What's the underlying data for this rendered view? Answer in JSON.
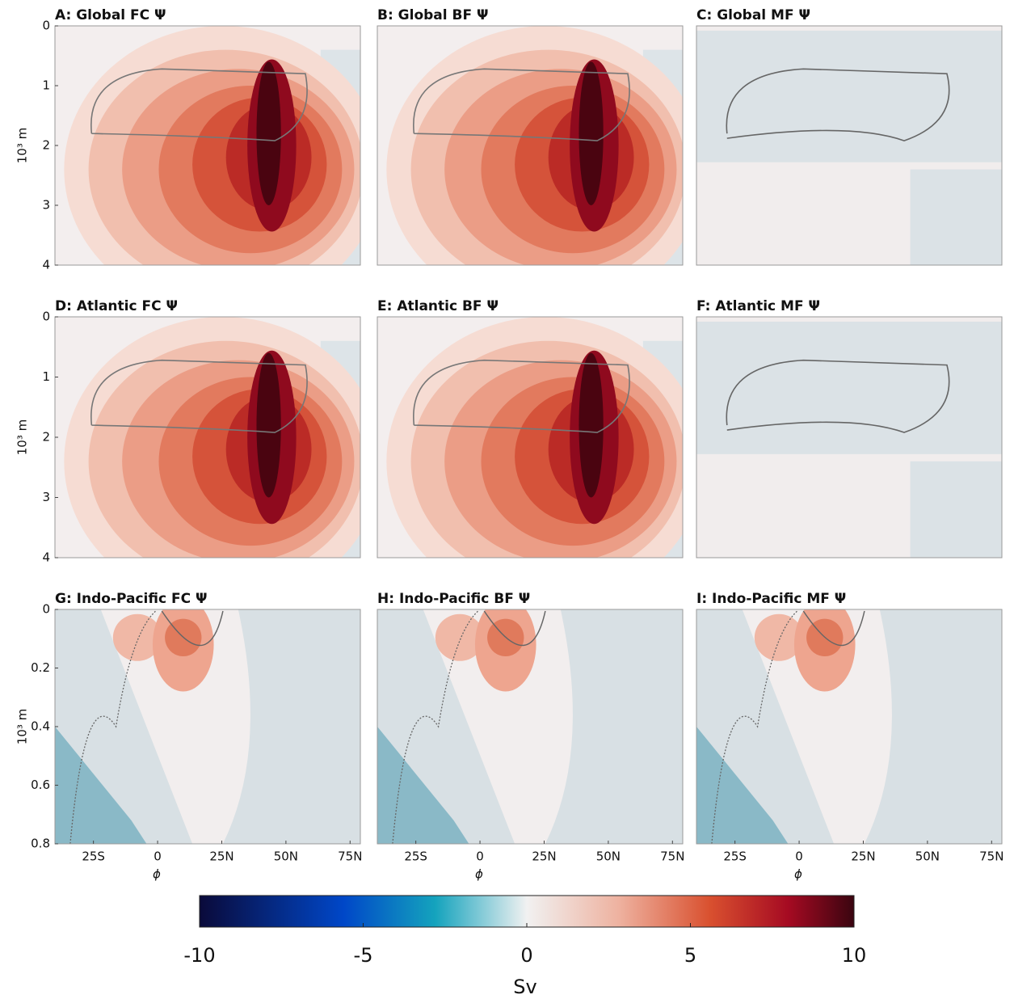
{
  "chart_data": [
    {
      "type": "contour",
      "title": "A: Global FC Ψ",
      "ylabel": "10³ m",
      "xlim": [
        -40,
        79
      ],
      "ylim": [
        0,
        4
      ],
      "y_inverted": true,
      "yticks": [
        0,
        1,
        2,
        3,
        4
      ],
      "field": "strong"
    },
    {
      "type": "contour",
      "title": "B: Global BF Ψ",
      "xlim": [
        -40,
        79
      ],
      "ylim": [
        0,
        4
      ],
      "y_inverted": true,
      "field": "strong"
    },
    {
      "type": "contour",
      "title": "C: Global MF Ψ",
      "xlim": [
        -40,
        79
      ],
      "ylim": [
        0,
        4
      ],
      "y_inverted": true,
      "field": "weak"
    },
    {
      "type": "contour",
      "title": "D: Atlantic FC Ψ",
      "ylabel": "10³ m",
      "xlim": [
        -40,
        79
      ],
      "ylim": [
        0,
        4
      ],
      "y_inverted": true,
      "yticks": [
        0,
        1,
        2,
        3,
        4
      ],
      "field": "strong"
    },
    {
      "type": "contour",
      "title": "E: Atlantic BF Ψ",
      "xlim": [
        -40,
        79
      ],
      "ylim": [
        0,
        4
      ],
      "y_inverted": true,
      "field": "strong"
    },
    {
      "type": "contour",
      "title": "F: Atlantic MF Ψ",
      "xlim": [
        -40,
        79
      ],
      "ylim": [
        0,
        4
      ],
      "y_inverted": true,
      "field": "weak"
    },
    {
      "type": "contour",
      "title": "G: Indo-Pacific FC Ψ",
      "ylabel": "10³ m",
      "xlabel": "ϕ",
      "xlim": [
        -40,
        79
      ],
      "ylim": [
        0,
        0.8
      ],
      "y_inverted": true,
      "yticks": [
        0,
        0.2,
        0.4,
        0.6,
        0.8
      ],
      "xticks": [
        {
          "value": -25,
          "label": "25S"
        },
        0,
        {
          "value": 25,
          "label": "25N"
        },
        {
          "value": 50,
          "label": "50N"
        },
        {
          "value": 75,
          "label": "75N"
        }
      ],
      "field": "shallow"
    },
    {
      "type": "contour",
      "title": "H: Indo-Pacific BF Ψ",
      "xlabel": "ϕ",
      "xlim": [
        -40,
        79
      ],
      "ylim": [
        0,
        0.8
      ],
      "y_inverted": true,
      "xticks": [
        {
          "value": -25,
          "label": "25S"
        },
        0,
        {
          "value": 25,
          "label": "25N"
        },
        {
          "value": 50,
          "label": "50N"
        },
        {
          "value": 75,
          "label": "75N"
        }
      ],
      "field": "shallow"
    },
    {
      "type": "contour",
      "title": "I: Indo-Pacific MF Ψ",
      "xlabel": "ϕ",
      "xlim": [
        -40,
        79
      ],
      "ylim": [
        0,
        0.8
      ],
      "y_inverted": true,
      "xticks": [
        {
          "value": -25,
          "label": "25S"
        },
        0,
        {
          "value": 25,
          "label": "25N"
        },
        {
          "value": 50,
          "label": "50N"
        },
        {
          "value": 75,
          "label": "75N"
        }
      ],
      "field": "shallow"
    },
    {
      "type": "colorbar",
      "label": "Sv",
      "xlim": [
        -10,
        10
      ],
      "xticks": [
        -10,
        -5,
        0,
        5,
        10
      ]
    }
  ]
}
